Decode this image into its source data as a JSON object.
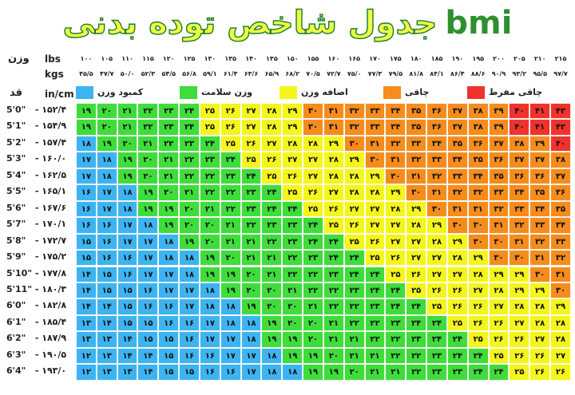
{
  "title": "جدول شاخص توده بدنی",
  "title_latin": "bmi",
  "colors": {
    "underweight": "#3db4f0",
    "healthy": "#3fdc3c",
    "overweight": "#f5f51e",
    "obese": "#f58c1e",
    "extremely_obese": "#f0322d"
  },
  "labels": {
    "weight": "وزن",
    "lbs": "lbs",
    "kgs": "kgs",
    "height": "قد",
    "incm": "in/cm"
  },
  "legend": [
    {
      "label": "کمبود وزن",
      "color_key": "underweight"
    },
    {
      "label": "وزن سلامت",
      "color_key": "healthy"
    },
    {
      "label": "اضافه وزن",
      "color_key": "overweight"
    },
    {
      "label": "چاقی",
      "color_key": "obese"
    },
    {
      "label": "چاقی مفرط",
      "color_key": "extremely_obese"
    }
  ],
  "chart_data": {
    "type": "heatmap",
    "title": "جدول شاخص توده بدنی bmi",
    "x_lbs": [
      "۱۰۰",
      "۱۰۵",
      "۱۱۰",
      "۱۱۵",
      "۱۲۰",
      "۱۲۵",
      "۱۳۰",
      "۱۳۵",
      "۱۴۰",
      "۱۴۵",
      "۱۵۰",
      "۱۵۵",
      "۱۶۰",
      "۱۶۵",
      "۱۷۰",
      "۱۷۵",
      "۱۸۰",
      "۱۸۵",
      "۱۹۰",
      "۱۹۵",
      "۲۰۰",
      "۲۰۵",
      "۲۱۰",
      "۲۱۵"
    ],
    "x_kgs": [
      "۴۵/۵",
      "۴۷/۷",
      "۵۰/۰",
      "۵۲/۳",
      "۵۴/۵",
      "۵۶/۸",
      "۵۹/۱",
      "۶۱/۴",
      "۶۳/۶",
      "۶۵/۹",
      "۶۸/۲",
      "۷۰/۵",
      "۷۲/۷",
      "۷۵/۰",
      "۷۷/۳",
      "۷۹/۵",
      "۸۱/۸",
      "۸۴/۱",
      "۸۶/۴",
      "۸۸/۶",
      "۹۰/۹",
      "۹۳/۲",
      "۹۵/۵",
      "۹۷/۷"
    ],
    "y_labels": [
      [
        "5'0\"",
        "۱۵۲/۴"
      ],
      [
        "5'1\"",
        "۱۵۴/۹"
      ],
      [
        "5'2\"",
        "۱۵۷/۴"
      ],
      [
        "5'3\"",
        "۱۶۰/۰"
      ],
      [
        "5'4\"",
        "۱۶۲/۵"
      ],
      [
        "5'5\"",
        "۱۶۵/۱"
      ],
      [
        "5'6\"",
        "۱۶۷/۶"
      ],
      [
        "5'7\"",
        "۱۷۰/۱"
      ],
      [
        "5'8\"",
        "۱۷۲/۷"
      ],
      [
        "5'9\"",
        "۱۷۵/۲"
      ],
      [
        "5'10\"",
        "۱۷۷/۸"
      ],
      [
        "5'11\"",
        "۱۸۰/۳"
      ],
      [
        "6'0\"",
        "۱۸۲/۸"
      ],
      [
        "6'1\"",
        "۱۸۵/۴"
      ],
      [
        "6'2\"",
        "۱۸۷/۹"
      ],
      [
        "6'3\"",
        "۱۹۰/۵"
      ],
      [
        "6'4\"",
        "۱۹۳/۰"
      ]
    ],
    "values": [
      [
        19,
        20,
        21,
        22,
        23,
        24,
        25,
        26,
        27,
        28,
        29,
        30,
        31,
        32,
        33,
        34,
        35,
        36,
        37,
        38,
        39,
        40,
        41,
        42
      ],
      [
        19,
        20,
        21,
        22,
        23,
        24,
        25,
        26,
        27,
        28,
        29,
        30,
        31,
        32,
        33,
        34,
        35,
        36,
        37,
        38,
        39,
        40,
        41,
        42
      ],
      [
        18,
        19,
        20,
        21,
        22,
        23,
        24,
        25,
        26,
        27,
        28,
        28,
        29,
        30,
        31,
        32,
        33,
        34,
        35,
        36,
        37,
        38,
        39,
        40
      ],
      [
        17,
        18,
        19,
        20,
        21,
        22,
        23,
        24,
        25,
        26,
        27,
        27,
        28,
        29,
        30,
        31,
        32,
        33,
        34,
        35,
        36,
        37,
        37,
        38
      ],
      [
        17,
        18,
        19,
        20,
        21,
        22,
        22,
        23,
        24,
        25,
        26,
        27,
        28,
        28,
        29,
        30,
        31,
        32,
        33,
        34,
        35,
        36,
        36,
        37
      ],
      [
        16,
        17,
        18,
        19,
        20,
        21,
        22,
        22,
        23,
        24,
        25,
        26,
        27,
        28,
        28,
        29,
        30,
        31,
        32,
        32,
        33,
        34,
        35,
        36
      ],
      [
        16,
        17,
        18,
        19,
        19,
        20,
        21,
        22,
        23,
        24,
        24,
        25,
        26,
        27,
        27,
        28,
        29,
        30,
        31,
        31,
        32,
        33,
        34,
        35
      ],
      [
        16,
        16,
        17,
        18,
        19,
        20,
        20,
        21,
        22,
        23,
        23,
        24,
        25,
        26,
        27,
        27,
        28,
        29,
        30,
        30,
        31,
        32,
        33,
        34
      ],
      [
        15,
        16,
        17,
        17,
        18,
        19,
        20,
        21,
        21,
        22,
        23,
        24,
        24,
        25,
        26,
        27,
        27,
        28,
        29,
        30,
        30,
        31,
        32,
        33
      ],
      [
        15,
        16,
        16,
        17,
        18,
        18,
        19,
        20,
        21,
        21,
        22,
        23,
        24,
        24,
        25,
        26,
        27,
        27,
        28,
        29,
        30,
        30,
        31,
        32
      ],
      [
        14,
        15,
        16,
        17,
        17,
        18,
        19,
        19,
        20,
        21,
        22,
        22,
        23,
        24,
        24,
        25,
        26,
        27,
        27,
        28,
        29,
        29,
        30,
        31
      ],
      [
        14,
        15,
        15,
        16,
        17,
        17,
        18,
        19,
        20,
        20,
        21,
        22,
        22,
        23,
        24,
        24,
        25,
        26,
        26,
        27,
        28,
        29,
        29,
        30
      ],
      [
        14,
        14,
        15,
        16,
        16,
        17,
        18,
        18,
        19,
        20,
        20,
        21,
        22,
        22,
        23,
        24,
        24,
        25,
        26,
        26,
        27,
        28,
        28,
        29
      ],
      [
        13,
        14,
        15,
        15,
        16,
        16,
        17,
        18,
        18,
        19,
        20,
        20,
        21,
        22,
        22,
        23,
        24,
        24,
        25,
        26,
        26,
        27,
        28,
        28
      ],
      [
        13,
        13,
        14,
        15,
        15,
        16,
        17,
        17,
        18,
        19,
        19,
        20,
        21,
        21,
        22,
        22,
        23,
        24,
        24,
        25,
        26,
        26,
        27,
        28
      ],
      [
        12,
        13,
        14,
        14,
        15,
        16,
        16,
        17,
        17,
        18,
        19,
        19,
        20,
        21,
        21,
        22,
        22,
        23,
        24,
        24,
        25,
        26,
        26,
        27
      ],
      [
        12,
        13,
        13,
        14,
        15,
        15,
        16,
        16,
        17,
        18,
        18,
        19,
        19,
        20,
        21,
        21,
        22,
        23,
        23,
        24,
        24,
        25,
        26,
        26
      ]
    ],
    "categories": [
      {
        "name": "کمبود وزن",
        "range": [
          0,
          18.5
        ]
      },
      {
        "name": "وزن سلامت",
        "range": [
          18.5,
          25
        ]
      },
      {
        "name": "اضافه وزن",
        "range": [
          25,
          30
        ]
      },
      {
        "name": "چاقی",
        "range": [
          30,
          40
        ]
      },
      {
        "name": "چاقی مفرط",
        "range": [
          40,
          100
        ]
      }
    ]
  }
}
